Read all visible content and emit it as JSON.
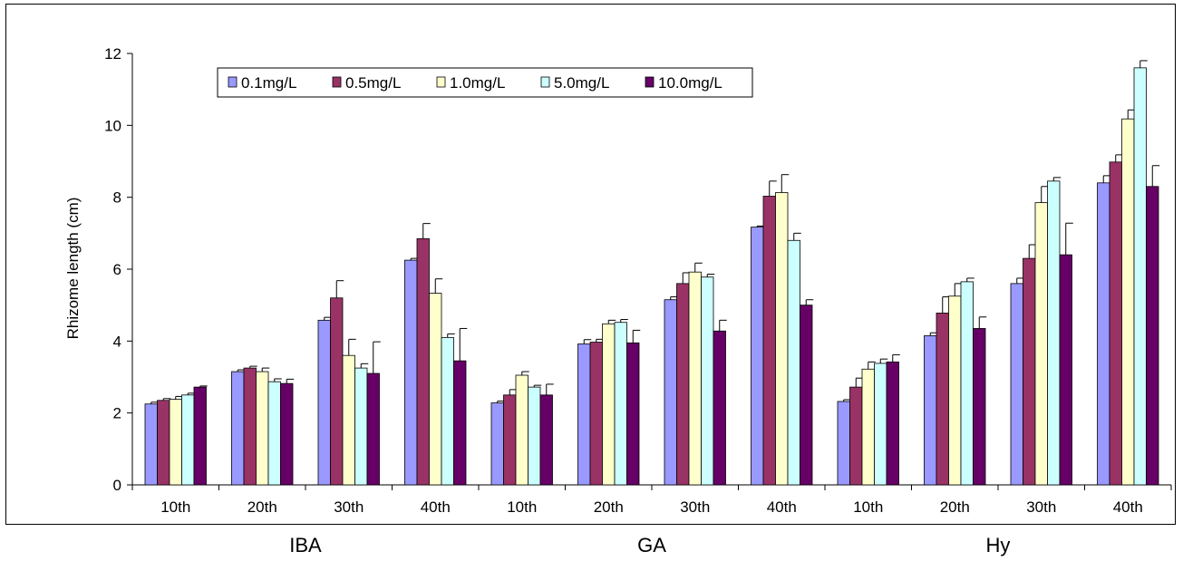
{
  "chart_data": {
    "type": "bar",
    "ylabel": "Rhizome length (cm)",
    "ylim": [
      0,
      12
    ],
    "yticks": [
      0,
      2,
      4,
      6,
      8,
      10,
      12
    ],
    "grid": false,
    "legend_position": "top-left",
    "groups": [
      "IBA",
      "GA",
      "Hy"
    ],
    "categories": [
      "10th",
      "20th",
      "30th",
      "40th",
      "10th",
      "20th",
      "30th",
      "40th",
      "10th",
      "20th",
      "30th",
      "40th"
    ],
    "series": [
      {
        "name": "0.1mg/L",
        "color": "#9999ff",
        "values": [
          2.25,
          3.15,
          4.58,
          6.25,
          2.28,
          3.92,
          5.15,
          7.17,
          2.32,
          4.15,
          5.6,
          8.4
        ],
        "errors": [
          0.05,
          0.05,
          0.08,
          0.05,
          0.05,
          0.12,
          0.08,
          0.03,
          0.05,
          0.08,
          0.15,
          0.2
        ]
      },
      {
        "name": "0.5mg/L",
        "color": "#993366",
        "values": [
          2.35,
          3.25,
          5.2,
          6.85,
          2.5,
          3.97,
          5.6,
          8.03,
          2.72,
          4.78,
          6.3,
          8.98
        ],
        "errors": [
          0.05,
          0.05,
          0.48,
          0.42,
          0.15,
          0.08,
          0.3,
          0.42,
          0.25,
          0.45,
          0.38,
          0.2
        ]
      },
      {
        "name": "1.0mg/L",
        "color": "#ffffcc",
        "values": [
          2.38,
          3.15,
          3.6,
          5.33,
          3.05,
          4.48,
          5.92,
          8.13,
          3.22,
          5.25,
          7.85,
          10.18
        ],
        "errors": [
          0.08,
          0.1,
          0.45,
          0.4,
          0.1,
          0.1,
          0.25,
          0.5,
          0.2,
          0.35,
          0.45,
          0.25
        ]
      },
      {
        "name": "5.0mg/L",
        "color": "#ccffff",
        "values": [
          2.5,
          2.87,
          3.25,
          4.1,
          2.72,
          4.52,
          5.78,
          6.8,
          3.38,
          5.65,
          8.45,
          11.6
        ],
        "errors": [
          0.05,
          0.08,
          0.12,
          0.1,
          0.05,
          0.08,
          0.08,
          0.2,
          0.12,
          0.1,
          0.1,
          0.2
        ]
      },
      {
        "name": "10.0mg/L",
        "color": "#660066",
        "values": [
          2.72,
          2.82,
          3.1,
          3.45,
          2.5,
          3.95,
          4.28,
          5.0,
          3.42,
          4.35,
          6.4,
          8.3
        ],
        "errors": [
          0.03,
          0.12,
          0.88,
          0.9,
          0.3,
          0.35,
          0.3,
          0.15,
          0.2,
          0.32,
          0.88,
          0.58
        ]
      }
    ]
  }
}
